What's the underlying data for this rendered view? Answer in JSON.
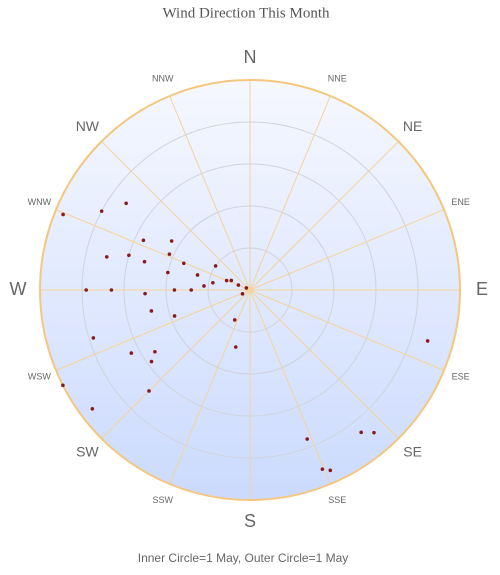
{
  "chart_data": {
    "type": "polar_scatter",
    "title": "Wind Direction This Month",
    "footnote": "Inner Circle=1 May, Outer Circle=1 May",
    "directions": [
      "N",
      "NNE",
      "NE",
      "ENE",
      "E",
      "ESE",
      "SE",
      "SSE",
      "S",
      "SSW",
      "SW",
      "WSW",
      "W",
      "WNW",
      "NW",
      "NNW"
    ],
    "color": "#8b1a1a",
    "rlim": [
      0,
      5
    ],
    "rticks": [
      1,
      2,
      3,
      4,
      5
    ],
    "thetalim": [
      0,
      360
    ],
    "theta": [
      292,
      298,
      305,
      295,
      302,
      283,
      286,
      285,
      294,
      292,
      282,
      305,
      286,
      270,
      270,
      268,
      270,
      270,
      275,
      281,
      292,
      297,
      293,
      243,
      300,
      258,
      251,
      253,
      242,
      237,
      234,
      243,
      233,
      225,
      207,
      194,
      106,
      159,
      142,
      139,
      158,
      156
    ],
    "r": [
      4.8,
      4.0,
      3.6,
      2.8,
      2.2,
      3.5,
      3.0,
      2.6,
      2.1,
      1.7,
      2.0,
      1.0,
      1.3,
      3.9,
      3.3,
      2.5,
      1.8,
      1.4,
      1.1,
      0.9,
      0.6,
      0.5,
      0.3,
      0.2,
      0.1,
      2.4,
      1.9,
      3.9,
      3.2,
      2.7,
      2.9,
      5.0,
      4.7,
      3.4,
      0.8,
      1.4,
      4.4,
      3.8,
      4.3,
      4.5,
      4.6,
      4.7
    ]
  }
}
